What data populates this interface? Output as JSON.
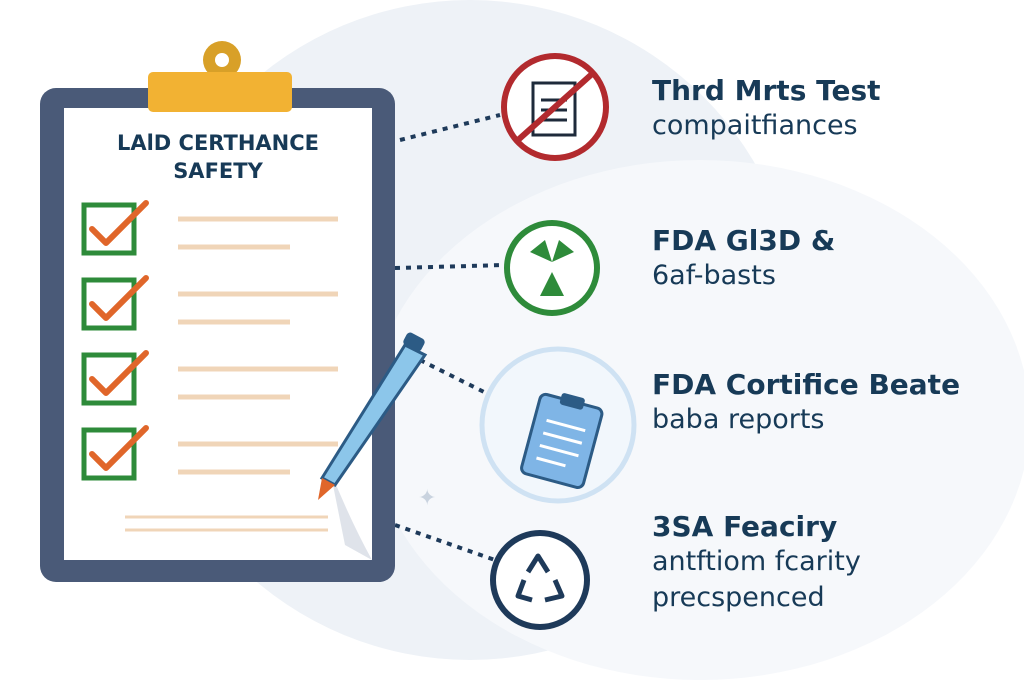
{
  "clipboard": {
    "title_line1": "LAlD CERTHANCE",
    "title_line2": "SAFETY",
    "checked_items": 4
  },
  "items": [
    {
      "title": "Thrd Mrts Test",
      "subtitle": [
        "compaitfiances"
      ],
      "icon": "document-check-icon",
      "color": "#b22a2e"
    },
    {
      "title": "FDA Gl3D &",
      "subtitle": [
        "6af-basts"
      ],
      "icon": "radiation-trefoil-icon",
      "color": "#2e8b3a"
    },
    {
      "title": "FDA Cortifice Beate",
      "subtitle": [
        "baba reports"
      ],
      "icon": "clipboard-report-icon",
      "color": "#5b9bd8"
    },
    {
      "title": "3SA Feaciry",
      "subtitle": [
        "antftiom fcarity",
        "precspenced"
      ],
      "icon": "recycle-icon",
      "color": "#1e3a5a"
    }
  ],
  "colors": {
    "text": "#173a57",
    "board": "#4a5a78",
    "clip": "#f2b233",
    "check_box": "#2e8b3a",
    "check_mark": "#e0662a"
  }
}
